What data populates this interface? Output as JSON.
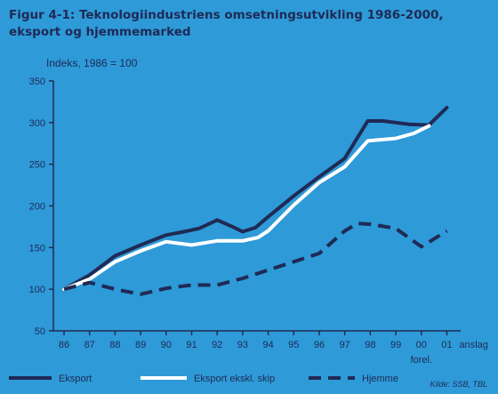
{
  "header": {
    "title_line1": "Figur 4-1: Teknologiindustriens omsetningsutvikling 1986-2000,",
    "title_line2": "eksport og hjemmemarked",
    "subtitle": "Indeks, 1986 = 100"
  },
  "source": "Kilde: SSB, TBL",
  "colors": {
    "background": "#2e9ad8",
    "navy": "#1f2a55",
    "white": "#ffffff"
  },
  "chart_data": {
    "type": "line",
    "title": "Figur 4-1: Teknologiindustriens omsetningsutvikling 1986-2000, eksport og hjemmemarked",
    "ylabel": "Indeks, 1986 = 100",
    "ylim": [
      50,
      350
    ],
    "yticks": [
      50,
      100,
      150,
      200,
      250,
      300,
      350
    ],
    "categories": [
      "86",
      "87",
      "88",
      "89",
      "90",
      "91",
      "92",
      "93",
      "94",
      "95",
      "96",
      "97",
      "98",
      "99",
      "00",
      "01"
    ],
    "x_extra_labels": {
      "forel": "forel.",
      "anslag": "anslag"
    },
    "grid": false,
    "legend_position": "bottom",
    "series": [
      {
        "name": "Eksport",
        "style": "solid",
        "color": "#1f2a55",
        "x": [
          86,
          87,
          88,
          89,
          90,
          90.7,
          91.3,
          92,
          92.6,
          93,
          93.5,
          94,
          95,
          96,
          97,
          97.9,
          98.5,
          99.5,
          100.3,
          101
        ],
        "values": [
          100,
          117,
          140,
          153,
          165,
          169,
          173,
          183,
          175,
          169,
          174,
          187,
          212,
          235,
          257,
          302,
          302,
          298,
          297,
          318
        ]
      },
      {
        "name": "Eksport ekskl. skip",
        "style": "solid",
        "color": "#ffffff",
        "x": [
          86,
          87,
          88,
          89,
          90,
          91,
          92,
          93,
          93.6,
          94,
          95,
          96,
          97,
          97.9,
          99,
          99.7,
          100.3
        ],
        "values": [
          100,
          112,
          133,
          146,
          157,
          153,
          158,
          158,
          162,
          170,
          201,
          228,
          247,
          278,
          281,
          287,
          296
        ]
      },
      {
        "name": "Hjemme",
        "style": "dashed",
        "color": "#1f2a55",
        "x": [
          86,
          87,
          88,
          89,
          90,
          91,
          92,
          93,
          94,
          95,
          96,
          97,
          97.5,
          98,
          99,
          100,
          101
        ],
        "values": [
          100,
          108,
          100,
          94,
          101,
          105,
          105,
          113,
          123,
          133,
          143,
          170,
          179,
          178,
          173,
          151,
          170
        ]
      }
    ]
  }
}
